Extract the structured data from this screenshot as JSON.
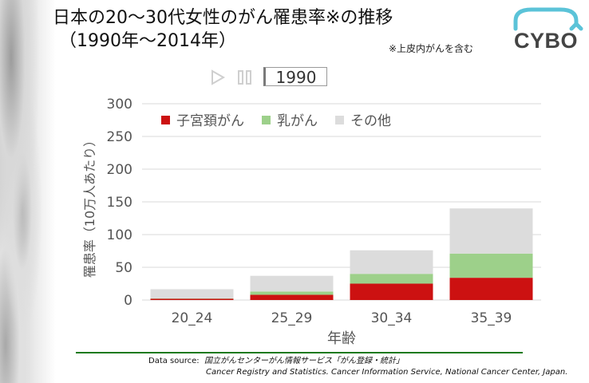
{
  "title": {
    "line1": "日本の20～30代女性のがん罹患率※の推移",
    "line2": "（1990年～2014年）",
    "note": "※上皮内がんを含む"
  },
  "logo": {
    "text": "CYBO"
  },
  "controls": {
    "play_icon": "play-icon",
    "pause_icon": "pause-icon",
    "year": "1990"
  },
  "source": {
    "label": "Data source:",
    "jp": "国立がんセンターがん情報サービス「がん登録・統計」",
    "en": "Cancer Registry and Statistics. Cancer Information Service, National Cancer Center, Japan."
  },
  "colors": {
    "cervical": "#cc1111",
    "breast": "#9dd08a",
    "other": "#dcdcdc",
    "axis_text": "#555555",
    "rule": "#1e7a1e"
  },
  "chart_data": {
    "type": "bar",
    "stacked": true,
    "categories": [
      "20_24",
      "25_29",
      "30_34",
      "35_39"
    ],
    "series": [
      {
        "name": "子宮頚がん",
        "values": [
          2,
          8,
          25,
          34
        ]
      },
      {
        "name": "乳がん",
        "values": [
          0.5,
          5,
          15,
          37
        ]
      },
      {
        "name": "その他",
        "values": [
          14,
          24,
          36,
          69
        ]
      }
    ],
    "xlabel": "年齢",
    "ylabel": "罹患率（10万人あたり）",
    "ylim": [
      0,
      300
    ],
    "yticks": [
      0,
      50,
      100,
      150,
      200,
      250,
      300
    ],
    "grid": true,
    "legend_position": "top"
  }
}
